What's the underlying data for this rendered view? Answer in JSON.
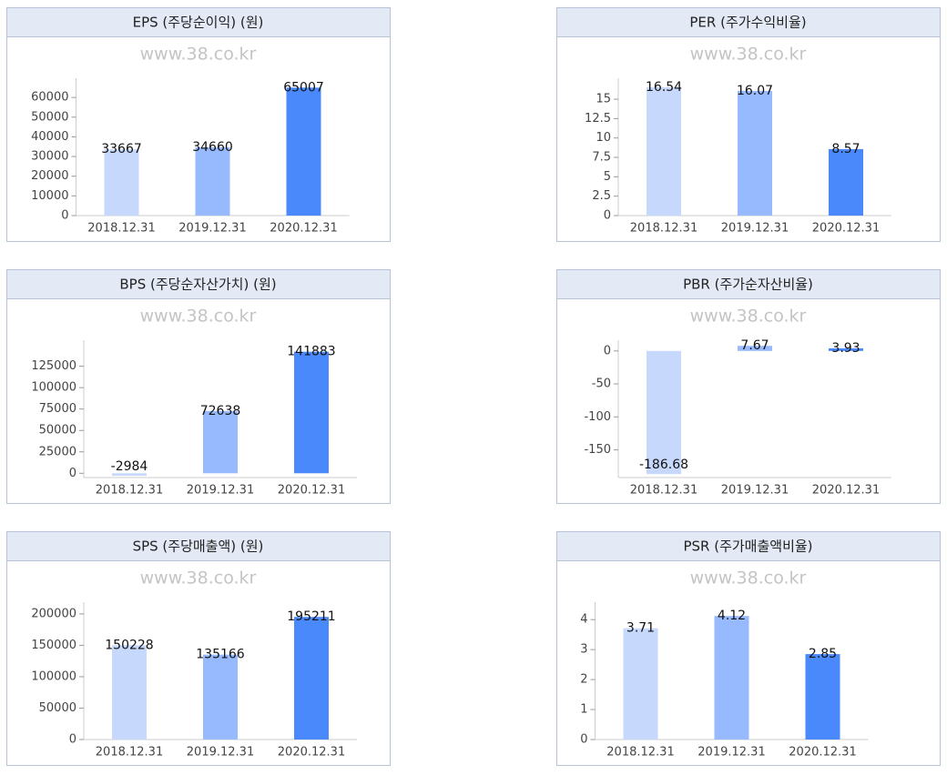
{
  "chart_data": [
    {
      "type": "bar",
      "title": "EPS (주당순이익) (원)",
      "watermark": "www.38.co.kr",
      "categories": [
        "2018.12.31",
        "2019.12.31",
        "2020.12.31"
      ],
      "values": [
        33667,
        34660,
        65007
      ],
      "colors": [
        "#c6d9fc",
        "#97b9fd",
        "#4a89fc"
      ],
      "ylim": [
        0,
        67000
      ],
      "yticks": [
        0,
        10000,
        20000,
        30000,
        40000,
        50000,
        60000
      ]
    },
    {
      "type": "bar",
      "title": "PER (주가수익비율)",
      "watermark": "www.38.co.kr",
      "categories": [
        "2018.12.31",
        "2019.12.31",
        "2020.12.31"
      ],
      "values": [
        16.54,
        16.07,
        8.57
      ],
      "colors": [
        "#c6d9fc",
        "#97b9fd",
        "#4a89fc"
      ],
      "ylim": [
        0,
        17
      ],
      "yticks": [
        0,
        2.5,
        5,
        7.5,
        10,
        12.5,
        15
      ]
    },
    {
      "type": "bar",
      "title": "BPS (주당순자산가치) (원)",
      "watermark": "www.38.co.kr",
      "categories": [
        "2018.12.31",
        "2019.12.31",
        "2020.12.31"
      ],
      "values": [
        -2984,
        72638,
        141883
      ],
      "colors": [
        "#c6d9fc",
        "#97b9fd",
        "#4a89fc"
      ],
      "ylim": [
        -5000,
        149000
      ],
      "yticks": [
        0,
        25000,
        50000,
        75000,
        100000,
        125000
      ]
    },
    {
      "type": "bar",
      "title": "PBR (주가순자산비율)",
      "watermark": "www.38.co.kr",
      "categories": [
        "2018.12.31",
        "2019.12.31",
        "2020.12.31"
      ],
      "values": [
        -186.68,
        7.67,
        3.93
      ],
      "colors": [
        "#c6d9fc",
        "#97b9fd",
        "#4a89fc"
      ],
      "ylim": [
        -192,
        8
      ],
      "yticks": [
        -150,
        -100,
        -50,
        0
      ]
    },
    {
      "type": "bar",
      "title": "SPS (주당매출액) (원)",
      "watermark": "www.38.co.kr",
      "categories": [
        "2018.12.31",
        "2019.12.31",
        "2020.12.31"
      ],
      "values": [
        150228,
        135166,
        195211
      ],
      "colors": [
        "#c6d9fc",
        "#97b9fd",
        "#4a89fc"
      ],
      "ylim": [
        0,
        210000
      ],
      "yticks": [
        0,
        50000,
        100000,
        150000,
        200000
      ]
    },
    {
      "type": "bar",
      "title": "PSR (주가매출액비율)",
      "watermark": "www.38.co.kr",
      "categories": [
        "2018.12.31",
        "2019.12.31",
        "2020.12.31"
      ],
      "values": [
        3.71,
        4.12,
        2.85
      ],
      "colors": [
        "#c6d9fc",
        "#97b9fd",
        "#4a89fc"
      ],
      "ylim": [
        0,
        4.4
      ],
      "yticks": [
        0,
        1,
        2,
        3,
        4
      ]
    }
  ]
}
